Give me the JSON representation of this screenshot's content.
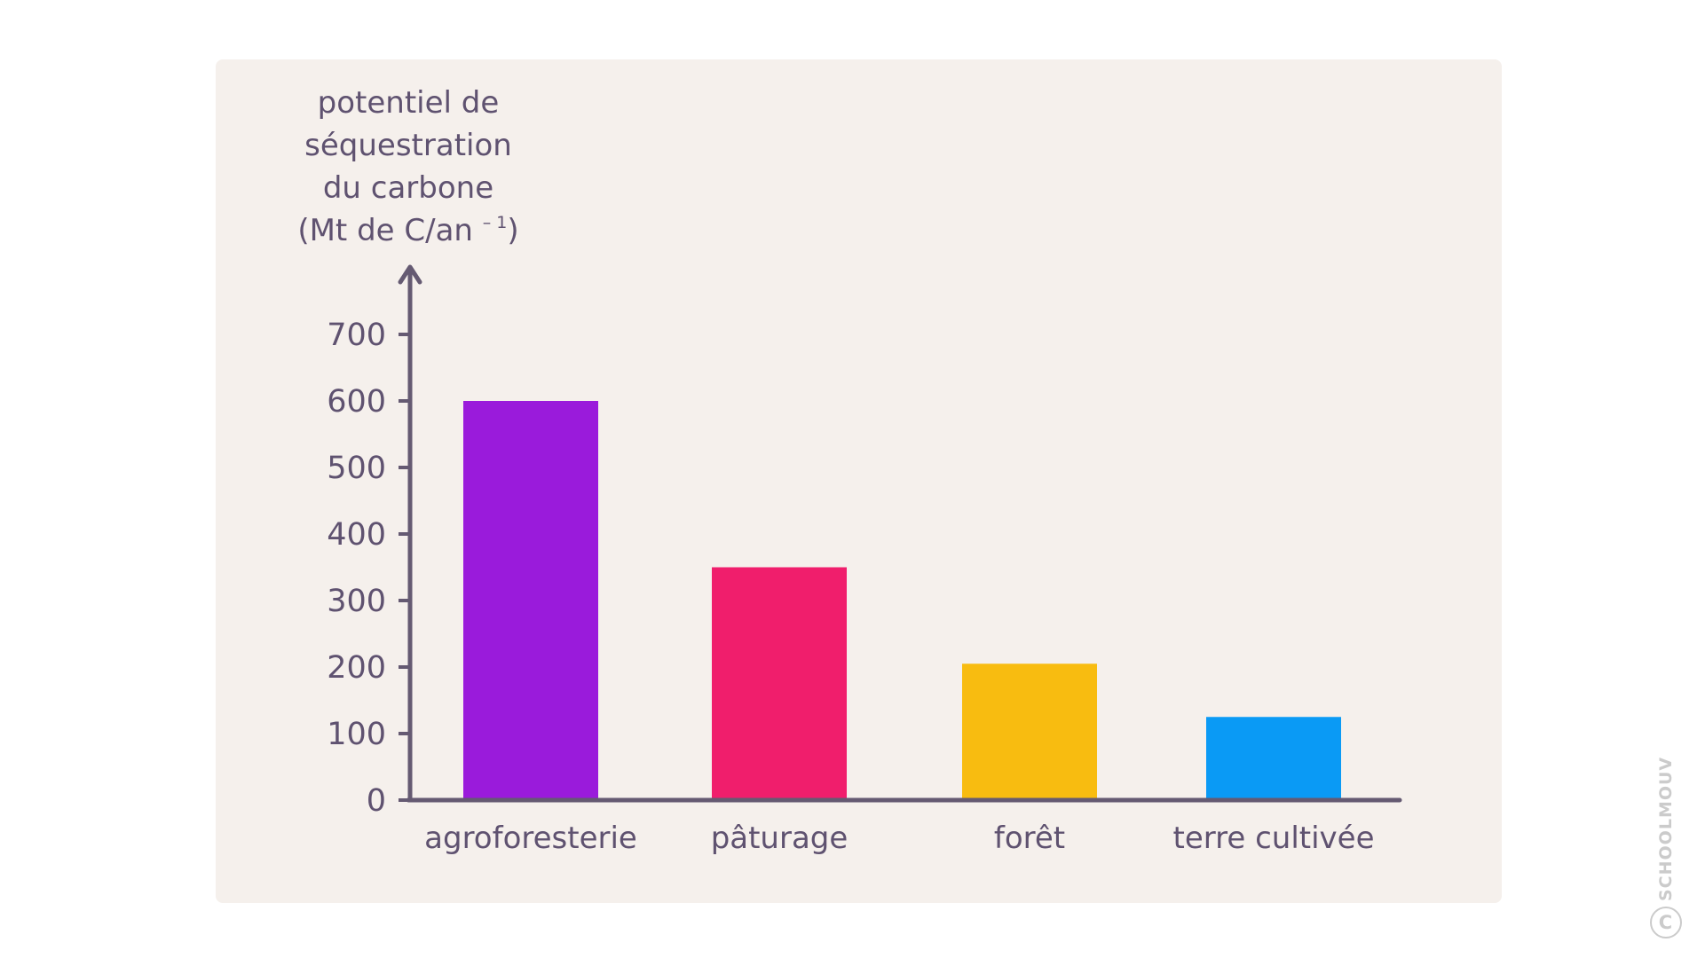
{
  "chart_data": {
    "type": "bar",
    "ylabel_lines": [
      "potentiel de",
      "séquestration",
      "du carbone",
      "(Mt de C/an"
    ],
    "ylabel_exponent": "– 1",
    "ylabel_close": ")",
    "categories": [
      "agroforesterie",
      "pâturage",
      "forêt",
      "terre cultivée"
    ],
    "values": [
      600,
      350,
      205,
      125
    ],
    "colors": [
      "#9a1bdb",
      "#f01e6c",
      "#f8bc10",
      "#0a9af5"
    ],
    "yticks": [
      "0",
      "100",
      "200",
      "300",
      "400",
      "500",
      "600",
      "700"
    ],
    "ylim": [
      0,
      700
    ],
    "grid": false,
    "axis_color": "#655a72",
    "text_color": "#5f5270"
  },
  "watermark": {
    "symbol": "C",
    "text": "SCHOOLMOUV"
  }
}
